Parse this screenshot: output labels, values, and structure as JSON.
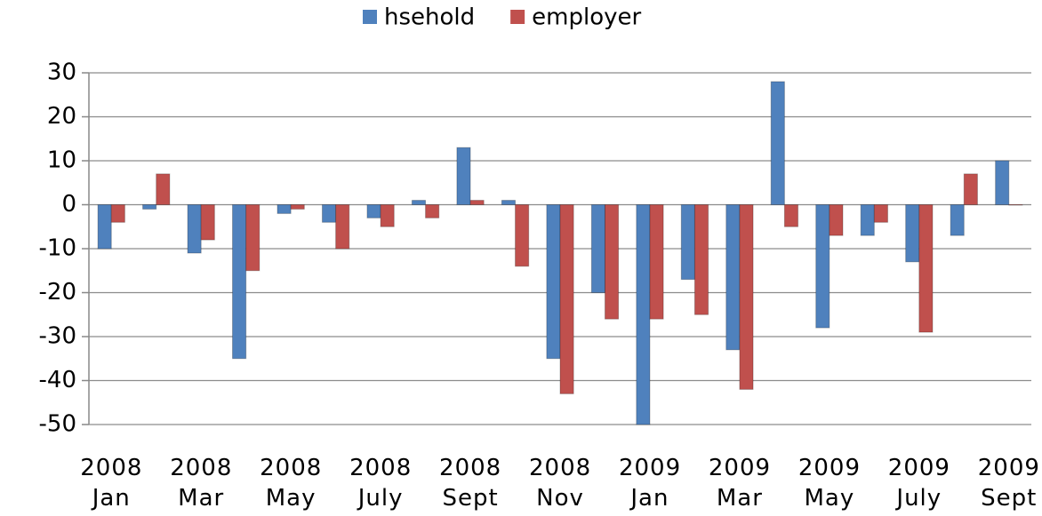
{
  "chart_data": {
    "type": "bar",
    "categories": [
      "2008 Jan",
      null,
      "2008 Mar",
      null,
      "2008 May",
      null,
      "2008 July",
      null,
      "2008 Sept",
      null,
      "2008 Nov",
      null,
      "2009 Jan",
      null,
      "2009 Mar",
      null,
      "2009 May",
      null,
      "2009 July",
      null,
      "2009 Sept"
    ],
    "series": [
      {
        "name": "hsehold",
        "color": "#4f81bd",
        "values": [
          -10,
          -1,
          -11,
          -35,
          -2,
          -4,
          -3,
          1,
          13,
          1,
          -35,
          -20,
          -50,
          -17,
          -33,
          28,
          -28,
          -7,
          -13,
          -7,
          10
        ]
      },
      {
        "name": "employer",
        "color": "#c0504d",
        "values": [
          -4,
          7,
          -8,
          -15,
          -1,
          -10,
          -5,
          -3,
          1,
          -14,
          -43,
          -26,
          -26,
          -25,
          -42,
          -5,
          -7,
          -4,
          -29,
          7,
          0
        ]
      }
    ],
    "ylim": [
      -50,
      30
    ],
    "yticks": [
      -50,
      -40,
      -30,
      -20,
      -10,
      0,
      10,
      20,
      30
    ],
    "grid": true,
    "legend": "top"
  }
}
